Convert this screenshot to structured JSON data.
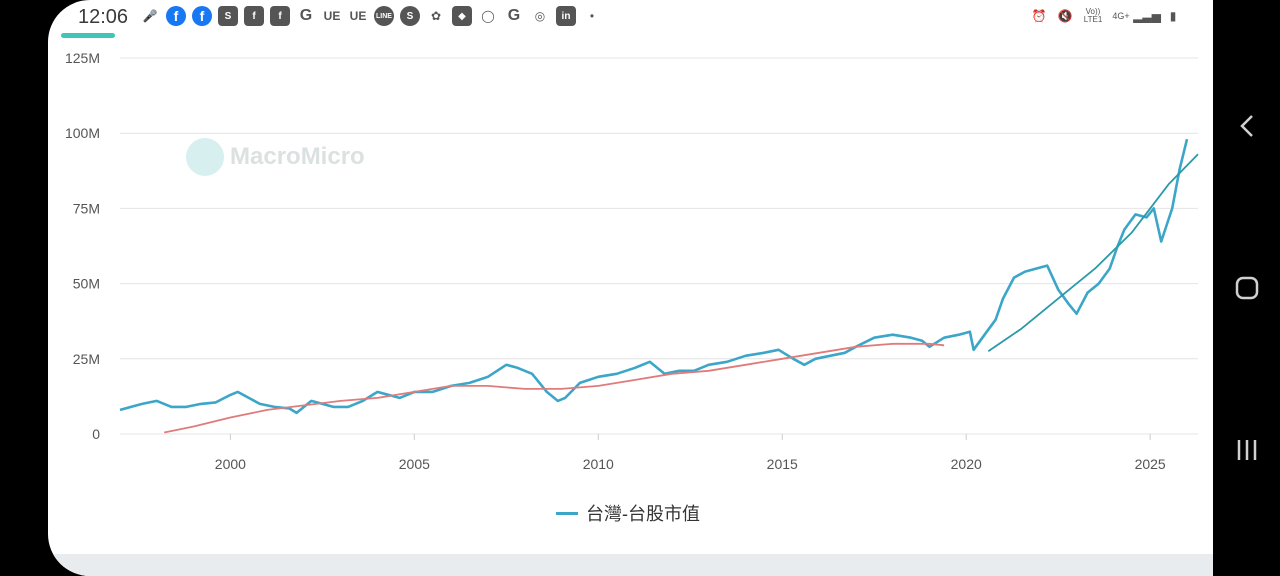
{
  "status": {
    "time": "12:06",
    "icons": [
      "mic-icon",
      "facebook-icon",
      "facebook-icon",
      "shopee-icon",
      "facebook-icon",
      "facebook-icon",
      "g-icon",
      "ue-icon",
      "ue-icon",
      "line-icon",
      "app-icon",
      "pinwheel-icon",
      "app-icon",
      "app-icon",
      "google-icon",
      "app-icon",
      "linkedin-icon",
      "dot-icon"
    ],
    "right_icons": [
      "alarm-icon",
      "mute-icon",
      "volte-icon",
      "4g-icon",
      "signal-icon",
      "battery-icon"
    ],
    "volte_label": "Vo)) LTE1",
    "network_label": "4G+"
  },
  "watermark": "MacroMicro",
  "legend": {
    "label": "台灣-台股市值",
    "color": "#3ba6c8"
  },
  "chart_data": {
    "type": "line",
    "title": "",
    "xlabel": "",
    "ylabel": "",
    "xlim": [
      1997,
      2026.3
    ],
    "ylim": [
      0,
      125
    ],
    "yticks": [
      0,
      25,
      50,
      75,
      100,
      125
    ],
    "ytick_labels": [
      "0",
      "25M",
      "50M",
      "75M",
      "100M",
      "125M"
    ],
    "xticks": [
      2000,
      2005,
      2010,
      2015,
      2020,
      2025
    ],
    "grid": true,
    "series": [
      {
        "name": "台灣-台股市值",
        "color": "#3ba6c8",
        "x": [
          1997.0,
          1997.3,
          1997.6,
          1998.0,
          1998.4,
          1998.8,
          1999.2,
          1999.6,
          2000.0,
          2000.2,
          2000.5,
          2000.8,
          2001.2,
          2001.6,
          2001.8,
          2002.2,
          2002.5,
          2002.8,
          2003.2,
          2003.6,
          2004.0,
          2004.3,
          2004.6,
          2005.0,
          2005.5,
          2006.0,
          2006.5,
          2007.0,
          2007.5,
          2007.8,
          2008.2,
          2008.6,
          2008.9,
          2009.1,
          2009.5,
          2010.0,
          2010.5,
          2011.0,
          2011.4,
          2011.8,
          2012.2,
          2012.6,
          2013.0,
          2013.5,
          2014.0,
          2014.5,
          2014.9,
          2015.3,
          2015.6,
          2015.9,
          2016.3,
          2016.7,
          2017.0,
          2017.5,
          2018.0,
          2018.5,
          2018.8,
          2019.0,
          2019.4,
          2019.8,
          2020.1,
          2020.2,
          2020.5,
          2020.8,
          2021.0,
          2021.3,
          2021.6,
          2021.9,
          2022.2,
          2022.5,
          2022.8,
          2023.0,
          2023.3,
          2023.6,
          2023.9,
          2024.1,
          2024.3,
          2024.6,
          2024.9,
          2025.1,
          2025.3,
          2025.6,
          2025.8,
          2026.0
        ],
        "y": [
          8,
          9,
          10,
          11,
          9,
          9,
          10,
          10.5,
          13,
          14,
          12,
          10,
          9,
          8.5,
          7,
          11,
          10,
          9,
          9,
          11,
          14,
          13,
          12,
          14,
          14,
          16,
          17,
          19,
          23,
          22,
          20,
          14,
          11,
          12,
          17,
          19,
          20,
          22,
          24,
          20,
          21,
          21,
          23,
          24,
          26,
          27,
          28,
          25,
          23,
          25,
          26,
          27,
          29,
          32,
          33,
          32,
          31,
          29,
          32,
          33,
          34,
          28,
          33,
          38,
          45,
          52,
          54,
          55,
          56,
          48,
          43,
          40,
          47,
          50,
          55,
          62,
          68,
          73,
          72,
          75,
          64,
          75,
          88,
          98
        ]
      },
      {
        "name": "",
        "color": "#e07b7b",
        "x": [
          1998.2,
          1999.0,
          2000.0,
          2001.0,
          2002.0,
          2003.0,
          2004.0,
          2005.0,
          2006.0,
          2007.0,
          2008.0,
          2009.0,
          2010.0,
          2011.0,
          2012.0,
          2013.0,
          2014.0,
          2015.0,
          2016.0,
          2017.0,
          2018.0,
          2019.0,
          2019.4
        ],
        "y": [
          0.5,
          2.5,
          5.5,
          8,
          9.5,
          11,
          12,
          14,
          16,
          16,
          15,
          15,
          16,
          18,
          20,
          21,
          23,
          25,
          27,
          29,
          30,
          30,
          29.5
        ]
      },
      {
        "name": "",
        "color": "#2a9aa8",
        "x": [
          2020.6,
          2021.5,
          2022.5,
          2023.5,
          2024.5,
          2025.5,
          2026.3
        ],
        "y": [
          27.5,
          35,
          45,
          55,
          67,
          83,
          93
        ]
      }
    ]
  }
}
